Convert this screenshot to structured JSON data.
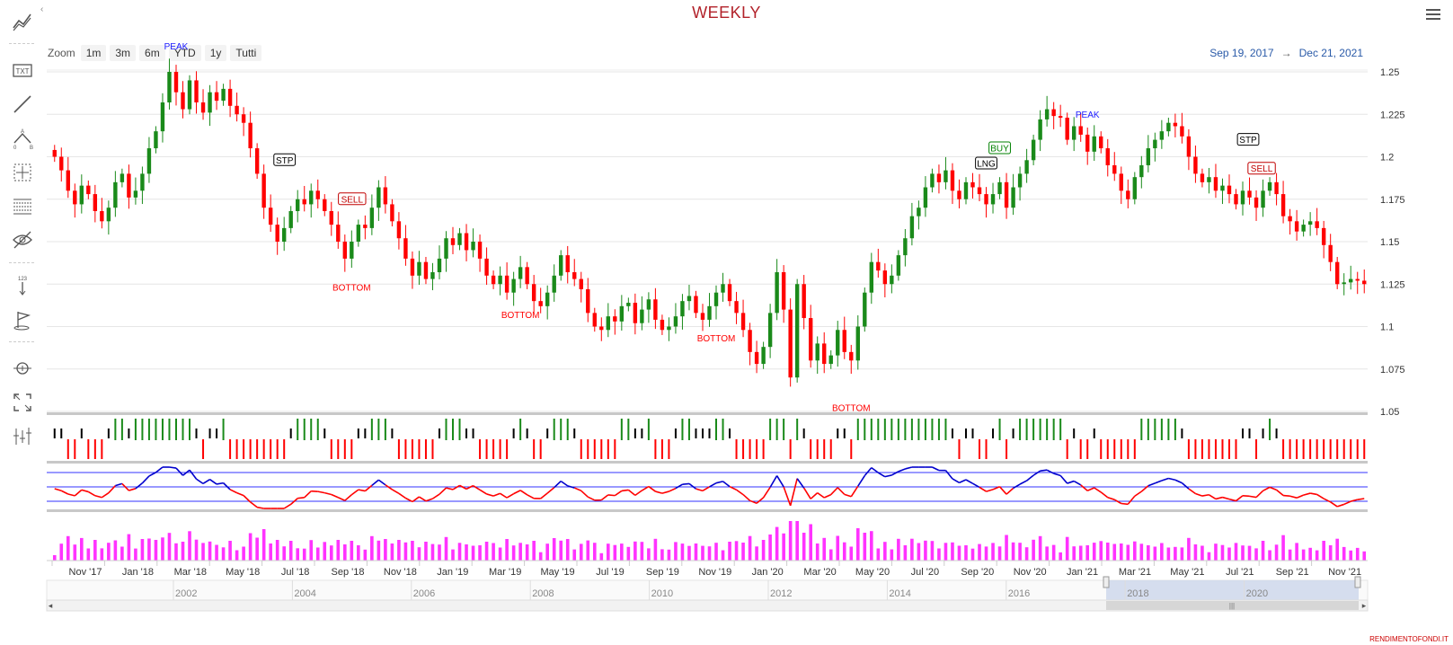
{
  "title": "WEEKLY",
  "zoom": {
    "label": "Zoom",
    "buttons": [
      "1m",
      "3m",
      "6m",
      "YTD",
      "1y",
      "Tutti"
    ]
  },
  "range": {
    "from": "Sep 19, 2017",
    "arrow": "→",
    "to": "Dec 21, 2021"
  },
  "credit": "RENDIMENTOFONDI.IT",
  "toolbar_icons": [
    "trend-line-icon",
    "text-icon",
    "line-icon",
    "measure-icon",
    "crosshair-icon",
    "fibonacci-icon",
    "hide-icon",
    "vertical-counter-icon",
    "flag-icon",
    "zoom-icon",
    "fullscreen-icon",
    "indicators-icon"
  ],
  "chart_data": {
    "type": "candlestick",
    "y_axis": {
      "ticks": [
        "1.25",
        "1.225",
        "1.2",
        "1.175",
        "1.15",
        "1.125",
        "1.1",
        "1.075",
        "1.05"
      ],
      "range": [
        1.05,
        1.25
      ],
      "position": "right"
    },
    "x_axis": {
      "ticks": [
        "Nov '17",
        "Jan '18",
        "Mar '18",
        "May '18",
        "Jul '18",
        "Sep '18",
        "Nov '18",
        "Jan '19",
        "Mar '19",
        "May '19",
        "Jul '19",
        "Sep '19",
        "Nov '19",
        "Jan '20",
        "Mar '20",
        "May '20",
        "Jul '20",
        "Sep '20",
        "Nov '20",
        "Jan '21",
        "Mar '21",
        "May '21",
        "Jul '21",
        "Sep '21",
        "Nov '21"
      ]
    },
    "closes": [
      1.2,
      1.192,
      1.18,
      1.172,
      1.183,
      1.178,
      1.168,
      1.162,
      1.17,
      1.185,
      1.19,
      1.176,
      1.18,
      1.19,
      1.205,
      1.215,
      1.232,
      1.25,
      1.238,
      1.228,
      1.245,
      1.232,
      1.226,
      1.238,
      1.233,
      1.24,
      1.23,
      1.225,
      1.22,
      1.205,
      1.19,
      1.17,
      1.16,
      1.15,
      1.158,
      1.168,
      1.175,
      1.172,
      1.18,
      1.175,
      1.168,
      1.16,
      1.15,
      1.14,
      1.15,
      1.16,
      1.158,
      1.17,
      1.182,
      1.172,
      1.162,
      1.152,
      1.14,
      1.13,
      1.138,
      1.128,
      1.132,
      1.14,
      1.152,
      1.148,
      1.155,
      1.145,
      1.15,
      1.14,
      1.13,
      1.125,
      1.13,
      1.12,
      1.128,
      1.135,
      1.125,
      1.115,
      1.112,
      1.12,
      1.13,
      1.142,
      1.132,
      1.128,
      1.122,
      1.108,
      1.1,
      1.098,
      1.106,
      1.103,
      1.112,
      1.114,
      1.102,
      1.11,
      1.116,
      1.104,
      1.098,
      1.1,
      1.106,
      1.115,
      1.118,
      1.108,
      1.104,
      1.112,
      1.12,
      1.125,
      1.115,
      1.108,
      1.098,
      1.085,
      1.078,
      1.088,
      1.108,
      1.132,
      1.11,
      1.07,
      1.125,
      1.105,
      1.08,
      1.09,
      1.078,
      1.083,
      1.098,
      1.085,
      1.08,
      1.1,
      1.12,
      1.138,
      1.133,
      1.125,
      1.13,
      1.142,
      1.152,
      1.165,
      1.17,
      1.182,
      1.19,
      1.185,
      1.192,
      1.18,
      1.175,
      1.185,
      1.182,
      1.178,
      1.172,
      1.178,
      1.185,
      1.17,
      1.182,
      1.19,
      1.198,
      1.21,
      1.222,
      1.228,
      1.224,
      1.223,
      1.21,
      1.218,
      1.213,
      1.203,
      1.212,
      1.205,
      1.195,
      1.19,
      1.18,
      1.175,
      1.188,
      1.195,
      1.205,
      1.21,
      1.215,
      1.22,
      1.218,
      1.212,
      1.2,
      1.19,
      1.185,
      1.188,
      1.18,
      1.183,
      1.178,
      1.172,
      1.18,
      1.176,
      1.17,
      1.18,
      1.185,
      1.178,
      1.165,
      1.162,
      1.156,
      1.16,
      1.162,
      1.158,
      1.148,
      1.138,
      1.125,
      1.126,
      1.128,
      1.127,
      1.125
    ],
    "annotations": [
      {
        "text": "PEAK",
        "color": "#1a1aff"
      },
      {
        "text": "STP",
        "color": "#000000",
        "boxed": true
      },
      {
        "text": "SELL",
        "color": "#c00000",
        "boxed": true
      },
      {
        "text": "BOTTOM",
        "color": "#ff0000"
      },
      {
        "text": "BOTTOM",
        "color": "#ff0000"
      },
      {
        "text": "BOTTOM",
        "color": "#ff0000"
      },
      {
        "text": "BOTTOM",
        "color": "#ff0000"
      },
      {
        "text": "BUY",
        "color": "#008000",
        "boxed": true
      },
      {
        "text": "LNG",
        "color": "#000000",
        "boxed": true
      },
      {
        "text": "PEAK",
        "color": "#1a1aff"
      },
      {
        "text": "STP",
        "color": "#000000",
        "boxed": true
      },
      {
        "text": "SELL",
        "color": "#c00000",
        "boxed": true
      }
    ],
    "navigator": {
      "ticks": [
        "2002",
        "2004",
        "2006",
        "2008",
        "2010",
        "2012",
        "2014",
        "2016",
        "2018",
        "2020"
      ]
    },
    "colors": {
      "up": "#1a8a1a",
      "down": "#ff0000",
      "neutral": "#000000",
      "oscillator_high": "#0000cc",
      "oscillator_low": "#ff0000",
      "volume": "#ff33ff",
      "grid": "#e6e6e6",
      "accent": "#b2222a"
    }
  }
}
